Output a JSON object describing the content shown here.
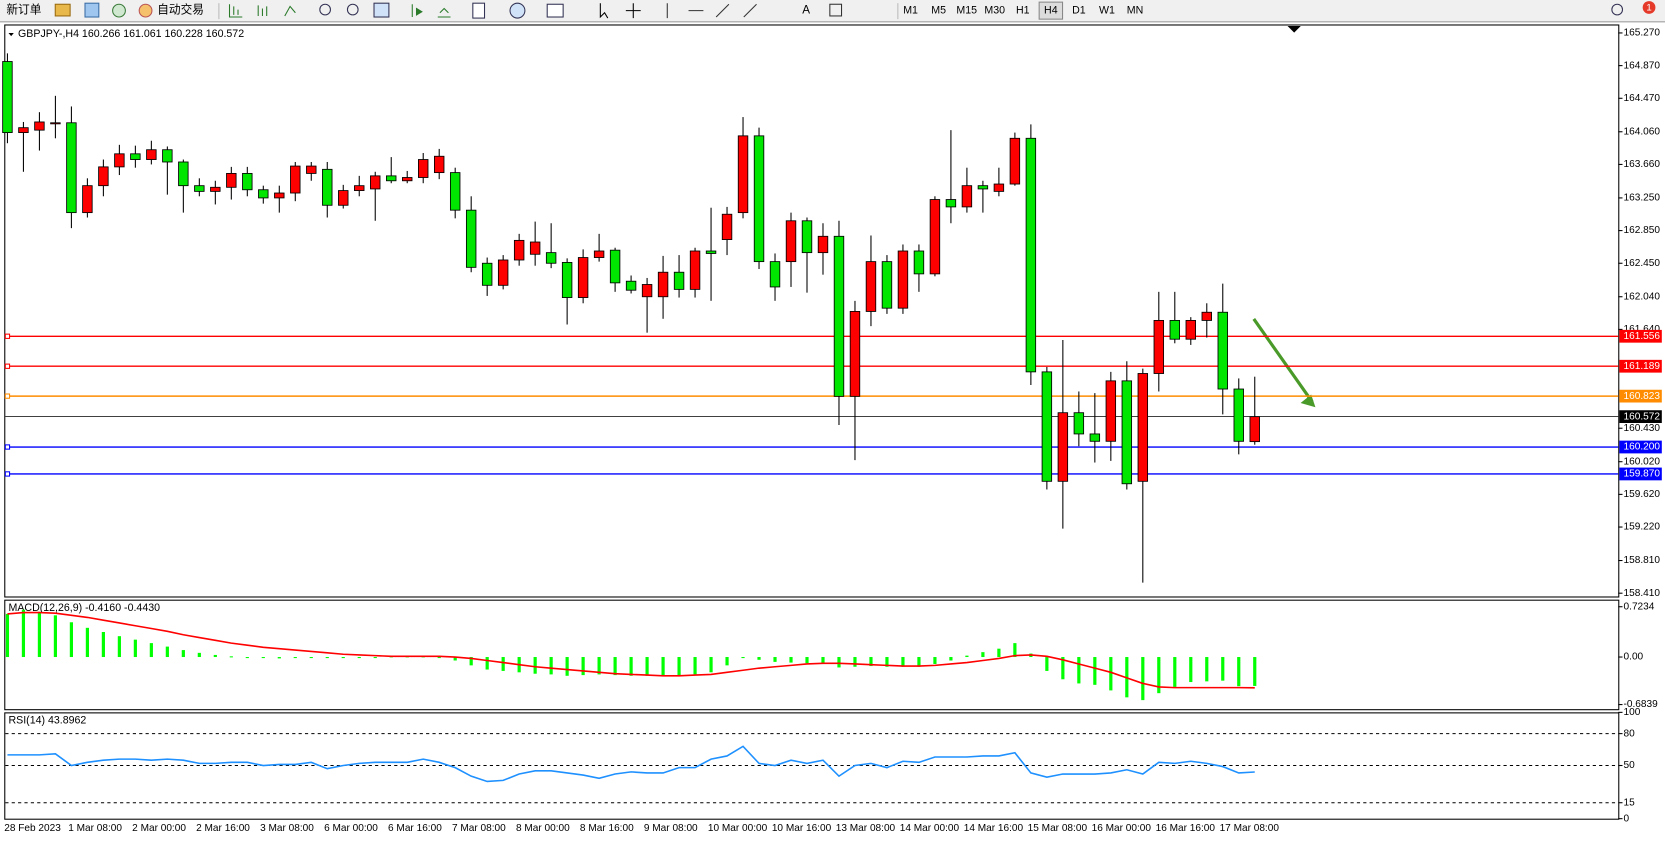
{
  "toolbar": {
    "new_order": "新订单",
    "auto_trading": "自动交易",
    "timeframes": [
      "M1",
      "M5",
      "M15",
      "M30",
      "H1",
      "H4",
      "D1",
      "W1",
      "MN"
    ],
    "active_timeframe": 5,
    "notification_count": "1"
  },
  "chart_data": [
    {
      "type": "candlestick",
      "title": "GBPJPY-,H4  160.266 161.061 160.228 160.572",
      "up_color": "#ff0000",
      "down_color": "#00e600",
      "categories": [
        "28 Feb 2023",
        null,
        null,
        null,
        "1 Mar 08:00",
        null,
        null,
        null,
        "2 Mar 00:00",
        null,
        null,
        null,
        "2 Mar 16:00",
        null,
        null,
        null,
        "3 Mar 08:00",
        null,
        null,
        null,
        "6 Mar 00:00",
        null,
        null,
        null,
        "6 Mar 16:00",
        null,
        null,
        null,
        "7 Mar 08:00",
        null,
        null,
        null,
        "8 Mar 00:00",
        null,
        null,
        null,
        "8 Mar 16:00",
        null,
        null,
        null,
        "9 Mar 08:00",
        null,
        null,
        null,
        "10 Mar 00:00",
        null,
        null,
        null,
        "10 Mar 16:00",
        null,
        null,
        null,
        "13 Mar 08:00",
        null,
        null,
        null,
        "14 Mar 00:00",
        null,
        null,
        null,
        "14 Mar 16:00",
        null,
        null,
        null,
        "15 Mar 08:00",
        null,
        null,
        null,
        "16 Mar 00:00",
        null,
        null,
        null,
        "16 Mar 16:00",
        null,
        null,
        null,
        "17 Mar 08:00",
        null,
        null
      ],
      "ohlc": [
        [
          164.92,
          165.02,
          163.92,
          164.05
        ],
        [
          164.05,
          164.18,
          163.57,
          164.11
        ],
        [
          164.08,
          164.3,
          163.83,
          164.18
        ],
        [
          164.16,
          164.5,
          163.98,
          164.17
        ],
        [
          164.17,
          164.37,
          162.88,
          163.07
        ],
        [
          163.07,
          163.49,
          163.01,
          163.4
        ],
        [
          163.4,
          163.72,
          163.27,
          163.63
        ],
        [
          163.63,
          163.9,
          163.53,
          163.79
        ],
        [
          163.79,
          163.89,
          163.62,
          163.72
        ],
        [
          163.72,
          163.95,
          163.66,
          163.84
        ],
        [
          163.84,
          163.88,
          163.29,
          163.69
        ],
        [
          163.69,
          163.72,
          163.07,
          163.4
        ],
        [
          163.4,
          163.49,
          163.27,
          163.33
        ],
        [
          163.33,
          163.46,
          163.17,
          163.38
        ],
        [
          163.38,
          163.63,
          163.23,
          163.55
        ],
        [
          163.55,
          163.63,
          163.27,
          163.35
        ],
        [
          163.35,
          163.4,
          163.18,
          163.25
        ],
        [
          163.25,
          163.4,
          163.07,
          163.31
        ],
        [
          163.31,
          163.69,
          163.21,
          163.64
        ],
        [
          163.55,
          163.69,
          163.46,
          163.64
        ],
        [
          163.6,
          163.69,
          163.01,
          163.16
        ],
        [
          163.16,
          163.41,
          163.12,
          163.34
        ],
        [
          163.34,
          163.52,
          163.27,
          163.4
        ],
        [
          163.36,
          163.57,
          162.97,
          163.52
        ],
        [
          163.52,
          163.75,
          163.43,
          163.46
        ],
        [
          163.46,
          163.58,
          163.43,
          163.5
        ],
        [
          163.5,
          163.8,
          163.43,
          163.72
        ],
        [
          163.56,
          163.85,
          163.48,
          163.76
        ],
        [
          163.56,
          163.62,
          163.0,
          163.1
        ],
        [
          163.1,
          163.27,
          162.34,
          162.4
        ],
        [
          162.45,
          162.52,
          162.05,
          162.18
        ],
        [
          162.18,
          162.55,
          162.13,
          162.49
        ],
        [
          162.49,
          162.81,
          162.42,
          162.73
        ],
        [
          162.56,
          162.96,
          162.42,
          162.71
        ],
        [
          162.58,
          162.94,
          162.39,
          162.45
        ],
        [
          162.46,
          162.51,
          161.7,
          162.03
        ],
        [
          162.03,
          162.62,
          161.96,
          162.52
        ],
        [
          162.52,
          162.81,
          162.47,
          162.6
        ],
        [
          162.61,
          162.64,
          162.1,
          162.21
        ],
        [
          162.23,
          162.3,
          162.08,
          162.12
        ],
        [
          162.04,
          162.27,
          161.6,
          162.19
        ],
        [
          162.04,
          162.54,
          161.77,
          162.34
        ],
        [
          162.34,
          162.55,
          162.03,
          162.13
        ],
        [
          162.13,
          162.64,
          162.03,
          162.6
        ],
        [
          162.6,
          163.13,
          161.99,
          162.57
        ],
        [
          162.74,
          163.14,
          162.55,
          163.05
        ],
        [
          163.07,
          164.24,
          163.0,
          164.01
        ],
        [
          164.01,
          164.11,
          162.38,
          162.47
        ],
        [
          162.47,
          162.57,
          161.99,
          162.16
        ],
        [
          162.47,
          163.07,
          162.16,
          162.97
        ],
        [
          162.97,
          163.01,
          162.09,
          162.58
        ],
        [
          162.58,
          162.94,
          162.31,
          162.78
        ],
        [
          162.78,
          162.97,
          160.47,
          160.82
        ],
        [
          160.82,
          161.99,
          160.04,
          161.86
        ],
        [
          161.86,
          162.79,
          161.68,
          162.47
        ],
        [
          162.47,
          162.55,
          161.83,
          161.9
        ],
        [
          161.9,
          162.68,
          161.83,
          162.6
        ],
        [
          162.6,
          162.68,
          162.1,
          162.32
        ],
        [
          162.32,
          163.27,
          162.29,
          163.23
        ],
        [
          163.23,
          164.08,
          162.94,
          163.14
        ],
        [
          163.14,
          163.62,
          163.07,
          163.4
        ],
        [
          163.4,
          163.46,
          163.07,
          163.36
        ],
        [
          163.33,
          163.62,
          163.27,
          163.42
        ],
        [
          163.42,
          164.05,
          163.4,
          163.98
        ],
        [
          163.98,
          164.15,
          160.96,
          161.12
        ],
        [
          161.12,
          161.18,
          159.68,
          159.78
        ],
        [
          159.78,
          161.51,
          159.2,
          160.62
        ],
        [
          160.62,
          160.88,
          160.21,
          160.36
        ],
        [
          160.36,
          160.86,
          160.01,
          160.27
        ],
        [
          160.27,
          161.12,
          160.03,
          161.01
        ],
        [
          161.01,
          161.25,
          159.68,
          159.75
        ],
        [
          159.78,
          161.16,
          158.54,
          161.1
        ],
        [
          161.1,
          162.1,
          160.88,
          161.75
        ],
        [
          161.75,
          162.1,
          161.47,
          161.52
        ],
        [
          161.52,
          161.79,
          161.45,
          161.75
        ],
        [
          161.75,
          161.96,
          161.54,
          161.85
        ],
        [
          161.85,
          162.2,
          160.6,
          160.91
        ],
        [
          160.91,
          161.04,
          160.11,
          160.27
        ],
        [
          160.266,
          161.061,
          160.228,
          160.572
        ]
      ],
      "ylim": [
        158.37,
        165.374
      ],
      "yticks": [
        {
          "value": 165.27,
          "label": "165.270"
        },
        {
          "value": 164.87,
          "label": "164.870"
        },
        {
          "value": 164.47,
          "label": "164.470"
        },
        {
          "value": 164.06,
          "label": "164.060"
        },
        {
          "value": 163.66,
          "label": "163.660"
        },
        {
          "value": 163.25,
          "label": "163.250"
        },
        {
          "value": 162.85,
          "label": "162.850"
        },
        {
          "value": 162.45,
          "label": "162.450"
        },
        {
          "value": 162.04,
          "label": "162.040"
        },
        {
          "value": 161.64,
          "label": "161.640"
        },
        {
          "value": 160.43,
          "label": "160.430"
        },
        {
          "value": 160.02,
          "label": "160.020"
        },
        {
          "value": 159.62,
          "label": "159.620"
        },
        {
          "value": 159.22,
          "label": "159.220"
        },
        {
          "value": 158.81,
          "label": "158.810"
        },
        {
          "value": 158.41,
          "label": "158.410"
        }
      ],
      "levels": [
        {
          "value": 161.556,
          "label": "161.556",
          "color": "#ff0000"
        },
        {
          "value": 161.189,
          "label": "161.189",
          "color": "#ff0000"
        },
        {
          "value": 160.823,
          "label": "160.823",
          "color": "#ff8c00"
        },
        {
          "value": 160.2,
          "label": "160.200",
          "color": "#0000ff"
        },
        {
          "value": 159.87,
          "label": "159.870",
          "color": "#0000ff"
        }
      ],
      "last_price": {
        "value": 160.572,
        "label": "160.572",
        "color": "#000000"
      }
    },
    {
      "type": "macd",
      "title": "MACD(12,26,9) -0.4160 -0.4430",
      "series": [
        {
          "color": "#00ff00",
          "values": [
            0.62,
            0.68,
            0.65,
            0.6,
            0.5,
            0.42,
            0.36,
            0.3,
            0.25,
            0.2,
            0.15,
            0.1,
            0.06,
            0.03,
            0.01,
            0,
            -0.01,
            -0.02,
            -0.01,
            0,
            0,
            -0.01,
            -0.01,
            0,
            0.01,
            0.01,
            0.01,
            0,
            -0.05,
            -0.12,
            -0.18,
            -0.2,
            -0.22,
            -0.24,
            -0.25,
            -0.27,
            -0.26,
            -0.25,
            -0.26,
            -0.27,
            -0.27,
            -0.27,
            -0.27,
            -0.25,
            -0.22,
            -0.12,
            0.0,
            -0.04,
            -0.07,
            -0.08,
            -0.09,
            -0.1,
            -0.15,
            -0.14,
            -0.13,
            -0.14,
            -0.14,
            -0.14,
            -0.1,
            -0.05,
            0.02,
            0.07,
            0.12,
            0.2,
            0.05,
            -0.2,
            -0.32,
            -0.38,
            -0.4,
            -0.48,
            -0.58,
            -0.62,
            -0.52,
            -0.43,
            -0.36,
            -0.35,
            -0.34,
            -0.42,
            -0.416
          ]
        },
        {
          "color": "#ff0000",
          "values": [
            0.62,
            0.64,
            0.64,
            0.63,
            0.6,
            0.57,
            0.53,
            0.49,
            0.45,
            0.41,
            0.37,
            0.32,
            0.28,
            0.24,
            0.2,
            0.17,
            0.14,
            0.12,
            0.1,
            0.08,
            0.06,
            0.04,
            0.03,
            0.02,
            0.01,
            0.01,
            0.01,
            0.01,
            0.0,
            -0.02,
            -0.05,
            -0.08,
            -0.11,
            -0.14,
            -0.16,
            -0.18,
            -0.2,
            -0.22,
            -0.24,
            -0.25,
            -0.26,
            -0.27,
            -0.27,
            -0.26,
            -0.25,
            -0.22,
            -0.19,
            -0.16,
            -0.14,
            -0.12,
            -0.1,
            -0.09,
            -0.09,
            -0.1,
            -0.11,
            -0.12,
            -0.13,
            -0.13,
            -0.12,
            -0.1,
            -0.08,
            -0.05,
            -0.02,
            0.02,
            0.03,
            0.01,
            -0.04,
            -0.1,
            -0.16,
            -0.22,
            -0.3,
            -0.38,
            -0.43,
            -0.44,
            -0.44,
            -0.44,
            -0.44,
            -0.44,
            -0.443
          ]
        }
      ],
      "ylim": [
        -0.75,
        0.81
      ],
      "yticks": [
        0.7234,
        {
          "value": 0,
          "label": "0.00"
        },
        -0.6839
      ]
    },
    {
      "type": "line",
      "title": "RSI(14) 43.8962",
      "series": [
        {
          "color": "#1e90ff",
          "values": [
            60,
            60,
            60,
            61,
            50,
            53,
            55,
            56,
            56,
            55,
            56,
            55,
            52,
            52,
            53,
            53,
            50,
            51,
            51,
            53,
            47,
            50,
            52,
            53,
            53,
            53,
            56,
            53,
            48,
            40,
            35,
            36,
            42,
            45,
            45,
            43,
            41,
            38,
            42,
            44,
            43,
            43,
            48,
            48,
            56,
            59,
            68,
            52,
            50,
            55,
            52,
            55,
            40,
            50,
            52,
            48,
            54,
            53,
            58,
            58,
            58,
            59,
            59,
            62,
            43,
            39,
            42,
            42,
            42,
            43,
            46,
            42,
            53,
            52,
            54,
            52,
            49,
            43,
            43.8962
          ]
        }
      ],
      "ylim": [
        0,
        100
      ],
      "yticks": [
        100,
        80,
        50,
        15,
        0
      ]
    }
  ]
}
